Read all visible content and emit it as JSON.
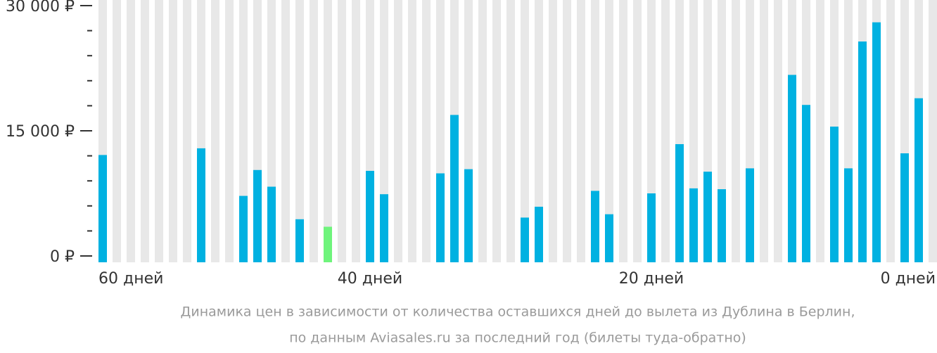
{
  "chart_data": {
    "type": "bar",
    "caption": [
      "Динамика цен в зависимости от количества оставшихся дней до вылета из Дублина в Берлин,",
      "по данным Aviasales.ru за последний год (билеты туда-обратно)"
    ],
    "categories": [
      "60 дней",
      null,
      null,
      null,
      null,
      null,
      null,
      null,
      null,
      null,
      null,
      null,
      null,
      null,
      null,
      null,
      null,
      null,
      null,
      "40 дней",
      null,
      null,
      null,
      null,
      null,
      null,
      null,
      null,
      null,
      null,
      null,
      null,
      null,
      null,
      null,
      null,
      null,
      null,
      null,
      "20 дней",
      null,
      null,
      null,
      null,
      null,
      null,
      null,
      null,
      null,
      null,
      null,
      null,
      null,
      null,
      null,
      null,
      null,
      null,
      null,
      "0 дней"
    ],
    "values": [
      12100,
      null,
      null,
      null,
      null,
      null,
      null,
      12900,
      null,
      null,
      7200,
      10300,
      8300,
      null,
      4400,
      null,
      3500,
      null,
      null,
      10200,
      7400,
      null,
      null,
      null,
      9900,
      16900,
      10400,
      null,
      null,
      null,
      4600,
      5900,
      null,
      null,
      null,
      7800,
      5000,
      null,
      null,
      7500,
      null,
      13400,
      8100,
      10100,
      8000,
      null,
      10500,
      null,
      null,
      21700,
      18100,
      null,
      15500,
      10500,
      25700,
      28000,
      null,
      12300,
      18900,
      null
    ],
    "color": "#00b1e1",
    "highlight": {
      "index": 16,
      "color": "#6ff47c"
    },
    "stripe_color": "#e8e8e8",
    "ylim": [
      0,
      30000
    ],
    "yticks": [
      {
        "value": 0,
        "label": "0 ₽"
      },
      {
        "value": 15000,
        "label": "15 000 ₽"
      },
      {
        "value": 30000,
        "label": "30 000 ₽"
      }
    ],
    "minor_yticks": [
      3000,
      6000,
      9000,
      12000,
      18000,
      21000,
      24000,
      27000
    ]
  }
}
